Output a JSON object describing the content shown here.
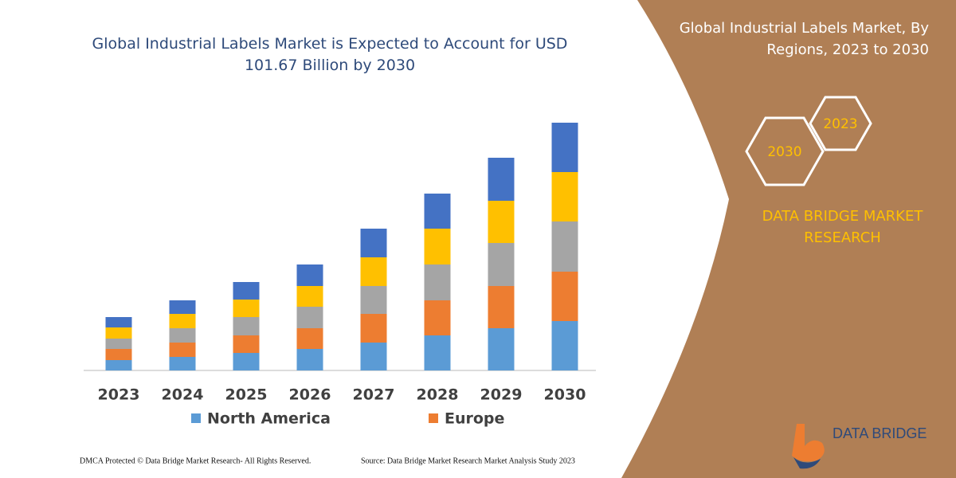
{
  "chart_data": {
    "type": "stacked-bar",
    "title": "Global Industrial Labels Market is Expected to Account for USD 101.67 Billion by 2030",
    "categories": [
      "2023",
      "2024",
      "2025",
      "2026",
      "2027",
      "2028",
      "2029",
      "2030"
    ],
    "series": [
      {
        "name": "North America",
        "color": "#5b9bd5",
        "values": [
          13,
          17,
          22,
          27,
          35,
          44,
          53,
          62
        ]
      },
      {
        "name": "Europe",
        "color": "#ed7d31",
        "values": [
          14,
          18,
          22,
          26,
          36,
          44,
          53,
          62
        ]
      },
      {
        "color": "#a5a5a5",
        "values": [
          13,
          18,
          23,
          27,
          35,
          45,
          54,
          63
        ]
      },
      {
        "color": "#ffc000",
        "values": [
          14,
          18,
          22,
          26,
          36,
          45,
          53,
          62
        ]
      },
      {
        "color": "#4472c4",
        "values": [
          13,
          17,
          22,
          27,
          36,
          44,
          54,
          62
        ]
      }
    ]
  },
  "panel": {
    "heading": "Global Industrial Labels Market, By Regions, 2023 to 2030",
    "hex_small": "2023",
    "hex_large": "2030",
    "brand": "DATA BRIDGE MARKET RESEARCH",
    "logo": "DATA BRIDGE"
  },
  "footer": {
    "copyright": "DMCA Protected © Data Bridge Market Research-  All Rights Reserved.",
    "source": "Source: Data Bridge Market Research  Market Analysis Study 2023"
  }
}
